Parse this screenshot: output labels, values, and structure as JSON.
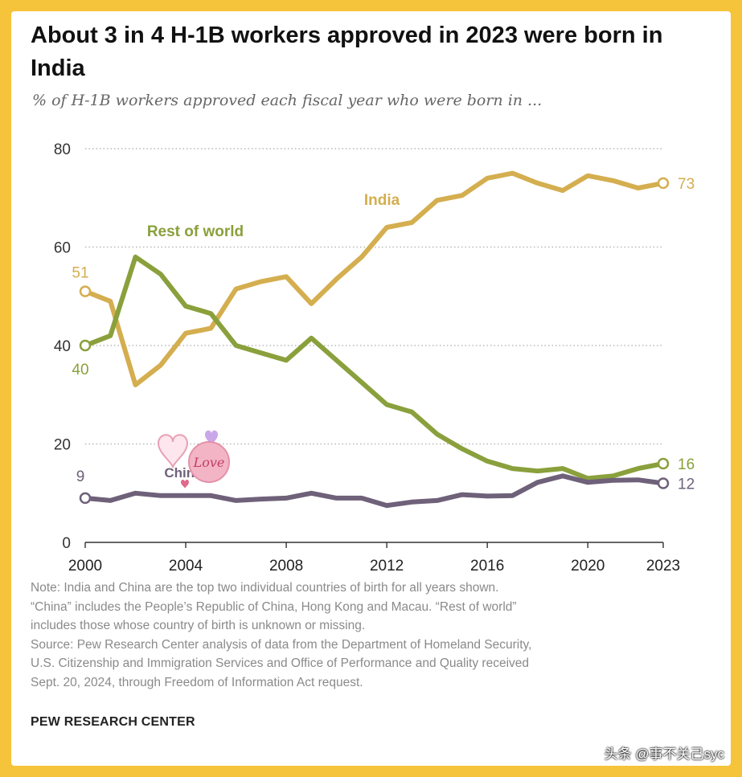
{
  "header": {
    "title": "About 3 in 4 H-1B workers approved in 2023 were born in India",
    "subtitle": "% of H-1B workers approved each fiscal year who were born in ..."
  },
  "footer": {
    "note_lines": [
      "Note: India and China are the top two individual countries of birth for all years shown.",
      "“China” includes the People’s Republic of China, Hong Kong and Macau. “Rest of world”",
      "includes those whose country of birth is unknown or missing.",
      "Source: Pew Research Center analysis of data from the Department of Homeland Security,",
      "U.S. Citizenship and Immigration Services and Office of Performance and Quality received",
      "Sept. 20, 2024, through Freedom of Information Act request."
    ],
    "brand": "PEW RESEARCH CENTER",
    "watermark": "头条 @事不关己syc"
  },
  "sticker": {
    "text": "Love"
  },
  "chart_data": {
    "type": "line",
    "title": "About 3 in 4 H-1B workers approved in 2023 were born in India",
    "subtitle": "% of H-1B workers approved each fiscal year who were born in ...",
    "x": [
      2000,
      2001,
      2002,
      2003,
      2004,
      2005,
      2006,
      2007,
      2008,
      2009,
      2010,
      2011,
      2012,
      2013,
      2014,
      2015,
      2016,
      2017,
      2018,
      2019,
      2020,
      2021,
      2022,
      2023
    ],
    "xticks": [
      2000,
      2004,
      2008,
      2012,
      2016,
      2020,
      2023
    ],
    "yticks": [
      0,
      20,
      40,
      60,
      80
    ],
    "ylim": [
      0,
      80
    ],
    "grid": "horizontal dotted",
    "series": [
      {
        "name": "India",
        "color": "#d4ae4f",
        "values": [
          51,
          49,
          32,
          36,
          42.5,
          43.5,
          51.5,
          53,
          54,
          48.5,
          53.5,
          58,
          64,
          65,
          69.5,
          70.5,
          74,
          75,
          73,
          71.5,
          74.5,
          73.5,
          72,
          73
        ],
        "start_label": "51",
        "end_label": "73"
      },
      {
        "name": "Rest of world",
        "color": "#8aa03c",
        "values": [
          40,
          42,
          58,
          54.5,
          48,
          46.5,
          40,
          38.5,
          37,
          41.5,
          37,
          32.5,
          28,
          26.5,
          22,
          19,
          16.5,
          15,
          14.5,
          15,
          13,
          13.5,
          15,
          16
        ],
        "start_label": "40",
        "end_label": "16"
      },
      {
        "name": "China",
        "color": "#6e6179",
        "values": [
          9,
          8.5,
          10,
          9.5,
          9.5,
          9.5,
          8.5,
          8.8,
          9,
          10,
          9,
          9,
          7.5,
          8.2,
          8.5,
          9.7,
          9.4,
          9.5,
          12.2,
          13.5,
          12.2,
          12.6,
          12.7,
          12
        ],
        "start_label": "9",
        "end_label": "12"
      }
    ]
  }
}
